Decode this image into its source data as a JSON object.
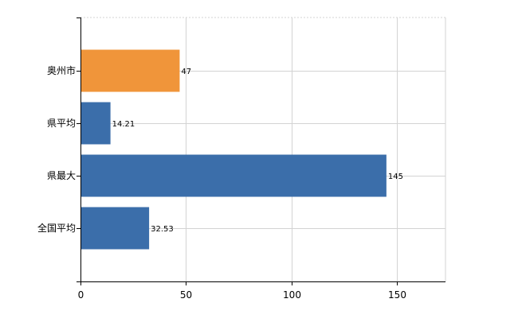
{
  "chart_data": {
    "type": "bar",
    "orientation": "horizontal",
    "categories": [
      "奥州市",
      "県平均",
      "県最大",
      "全国平均"
    ],
    "values": [
      47,
      14.21,
      145,
      32.53
    ],
    "data_labels": [
      "47",
      "14.21",
      "145",
      "32.53"
    ],
    "bar_colors": [
      "#f0953a",
      "#3b6eaa",
      "#3b6eaa",
      "#3b6eaa"
    ],
    "xlim": [
      0,
      173
    ],
    "xticks": [
      0,
      50,
      100,
      150
    ],
    "xtick_labels": [
      "0",
      "50",
      "100",
      "150"
    ],
    "grid": true,
    "title": "",
    "xlabel": "",
    "ylabel": ""
  }
}
